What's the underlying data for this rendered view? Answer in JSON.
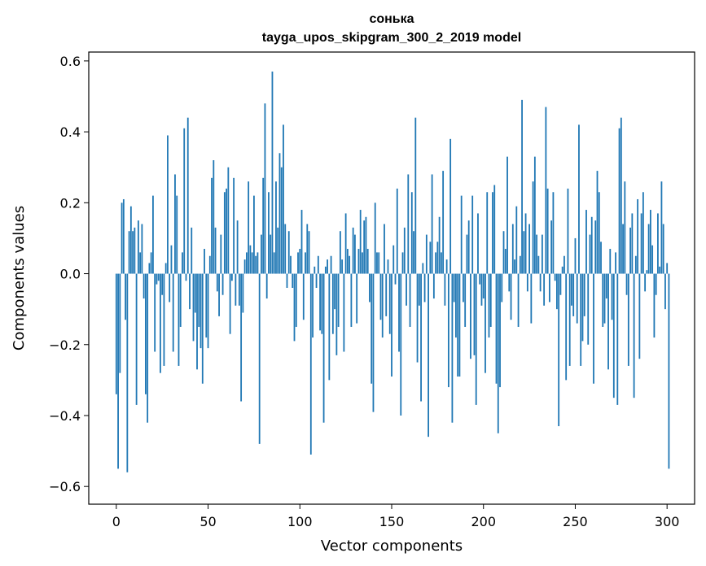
{
  "chart_data": {
    "type": "bar",
    "title_line1": "сонька",
    "title_line2": "tayga_upos_skipgram_300_2_2019 model",
    "xlabel": "Vector components",
    "ylabel": "Components values",
    "xlim": [
      -15,
      315
    ],
    "ylim": [
      -0.65,
      0.625
    ],
    "xticks": [
      0,
      50,
      100,
      150,
      200,
      250,
      300
    ],
    "xtick_labels": [
      "0",
      "50",
      "100",
      "150",
      "200",
      "250",
      "300"
    ],
    "yticks": [
      -0.6,
      -0.4,
      -0.2,
      0.0,
      0.2,
      0.4,
      0.6
    ],
    "ytick_labels": [
      "−0.6",
      "−0.4",
      "−0.2",
      "0.0",
      "0.2",
      "0.4",
      "0.6"
    ],
    "bar_color": "#1f77b4",
    "values": [
      -0.34,
      -0.55,
      -0.28,
      0.2,
      0.21,
      -0.13,
      -0.56,
      0.12,
      0.19,
      0.12,
      0.13,
      -0.37,
      0.15,
      0.06,
      0.14,
      -0.07,
      -0.34,
      -0.42,
      0.03,
      0.06,
      0.22,
      -0.22,
      -0.03,
      -0.02,
      -0.28,
      -0.06,
      -0.26,
      0.03,
      0.39,
      -0.08,
      0.08,
      -0.22,
      0.28,
      0.22,
      -0.26,
      -0.15,
      0.06,
      0.41,
      -0.02,
      0.44,
      -0.1,
      0.13,
      -0.19,
      -0.11,
      -0.27,
      -0.15,
      -0.21,
      -0.31,
      0.07,
      -0.18,
      -0.21,
      0.05,
      0.27,
      0.32,
      0.13,
      -0.05,
      -0.12,
      0.11,
      -0.06,
      0.23,
      0.24,
      0.3,
      -0.17,
      -0.02,
      0.27,
      -0.09,
      0.15,
      -0.09,
      -0.36,
      -0.11,
      0.04,
      0.06,
      0.26,
      0.08,
      0.06,
      0.22,
      0.05,
      0.06,
      -0.48,
      0.11,
      0.27,
      0.48,
      -0.07,
      0.23,
      0.11,
      0.57,
      0.06,
      0.26,
      0.13,
      0.34,
      0.3,
      0.42,
      0.14,
      -0.04,
      0.12,
      0.05,
      -0.04,
      -0.19,
      -0.15,
      0.06,
      0.07,
      0.18,
      -0.13,
      0.06,
      0.14,
      0.12,
      -0.51,
      -0.18,
      0.02,
      -0.04,
      0.05,
      -0.16,
      -0.17,
      -0.42,
      0.02,
      0.04,
      -0.3,
      0.05,
      -0.17,
      -0.1,
      -0.23,
      -0.15,
      0.12,
      0.04,
      -0.22,
      0.17,
      0.07,
      0.05,
      -0.15,
      0.13,
      0.11,
      -0.14,
      0.07,
      0.18,
      0.06,
      0.15,
      0.16,
      0.07,
      -0.08,
      -0.31,
      -0.39,
      0.2,
      0.06,
      0.06,
      -0.13,
      -0.18,
      0.14,
      -0.12,
      0.04,
      -0.17,
      -0.29,
      0.08,
      -0.03,
      0.24,
      -0.22,
      -0.4,
      0.06,
      0.13,
      -0.09,
      0.28,
      -0.15,
      0.23,
      0.12,
      0.44,
      -0.25,
      -0.09,
      -0.36,
      0.03,
      -0.08,
      0.11,
      -0.46,
      0.09,
      0.28,
      -0.07,
      0.06,
      0.09,
      0.16,
      0.06,
      0.29,
      -0.09,
      0.04,
      -0.32,
      0.38,
      -0.42,
      -0.08,
      -0.18,
      -0.29,
      -0.29,
      0.22,
      -0.08,
      -0.15,
      0.11,
      0.15,
      -0.24,
      0.22,
      -0.23,
      -0.37,
      0.17,
      -0.03,
      -0.09,
      -0.07,
      -0.28,
      0.23,
      -0.18,
      -0.15,
      0.23,
      0.25,
      -0.31,
      -0.45,
      -0.32,
      -0.08,
      0.12,
      0.07,
      0.33,
      -0.05,
      -0.13,
      0.14,
      0.04,
      0.19,
      -0.15,
      0.05,
      0.49,
      0.12,
      0.17,
      -0.05,
      0.14,
      -0.14,
      0.26,
      0.33,
      0.11,
      0.05,
      -0.05,
      0.11,
      -0.09,
      0.47,
      0.24,
      -0.08,
      0.15,
      0.23,
      -0.02,
      -0.1,
      -0.43,
      -0.06,
      0.02,
      0.05,
      -0.3,
      0.24,
      -0.26,
      -0.09,
      -0.12,
      0.1,
      -0.14,
      0.42,
      -0.26,
      -0.19,
      -0.12,
      0.18,
      -0.2,
      0.11,
      0.16,
      -0.31,
      0.15,
      0.29,
      0.23,
      0.09,
      -0.15,
      -0.14,
      -0.07,
      -0.27,
      0.07,
      -0.13,
      -0.35,
      0.06,
      -0.37,
      0.41,
      0.44,
      0.14,
      0.26,
      -0.06,
      -0.26,
      0.13,
      0.17,
      -0.35,
      0.05,
      0.21,
      -0.24,
      0.17,
      0.23,
      -0.05,
      0.01,
      0.14,
      0.18,
      0.08,
      -0.18,
      -0.06,
      0.17,
      0.02,
      0.26,
      0.14,
      -0.1,
      0.03,
      -0.55
    ]
  }
}
